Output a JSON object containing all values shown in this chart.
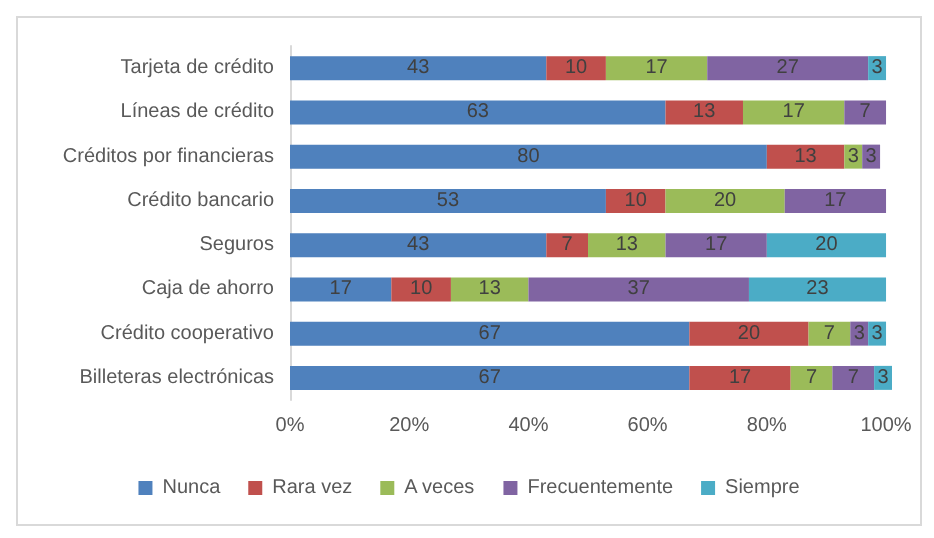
{
  "chart_data": {
    "type": "bar",
    "orientation": "horizontal",
    "stacked": true,
    "data_labels": true,
    "grid": false,
    "legend": "bottom",
    "categories": [
      "Tarjeta de crédito",
      "Líneas de crédito",
      "Créditos por financieras",
      "Crédito bancario",
      "Seguros",
      "Caja de ahorro",
      "Crédito cooperativo",
      "Billeteras electrónicas"
    ],
    "series": [
      {
        "name": "Nunca",
        "color": "#4f81bd",
        "values": [
          43,
          63,
          80,
          53,
          43,
          17,
          67,
          67
        ]
      },
      {
        "name": "Rara vez",
        "color": "#c0504d",
        "values": [
          10,
          13,
          13,
          10,
          7,
          10,
          20,
          17
        ]
      },
      {
        "name": "A veces",
        "color": "#9bbb59",
        "values": [
          17,
          17,
          3,
          20,
          13,
          13,
          7,
          7
        ]
      },
      {
        "name": "Frecuentemente",
        "color": "#8064a2",
        "values": [
          27,
          7,
          3,
          17,
          17,
          37,
          3,
          7
        ]
      },
      {
        "name": "Siempre",
        "color": "#4bacc6",
        "values": [
          3,
          null,
          null,
          null,
          20,
          23,
          3,
          3
        ]
      }
    ],
    "xlim": [
      0,
      101
    ],
    "xticks": [
      {
        "value": 0,
        "label": "0%"
      },
      {
        "value": 20,
        "label": "20%"
      },
      {
        "value": 40,
        "label": "40%"
      },
      {
        "value": 60,
        "label": "60%"
      },
      {
        "value": 80,
        "label": "80%"
      },
      {
        "value": 100,
        "label": "100%"
      }
    ]
  }
}
